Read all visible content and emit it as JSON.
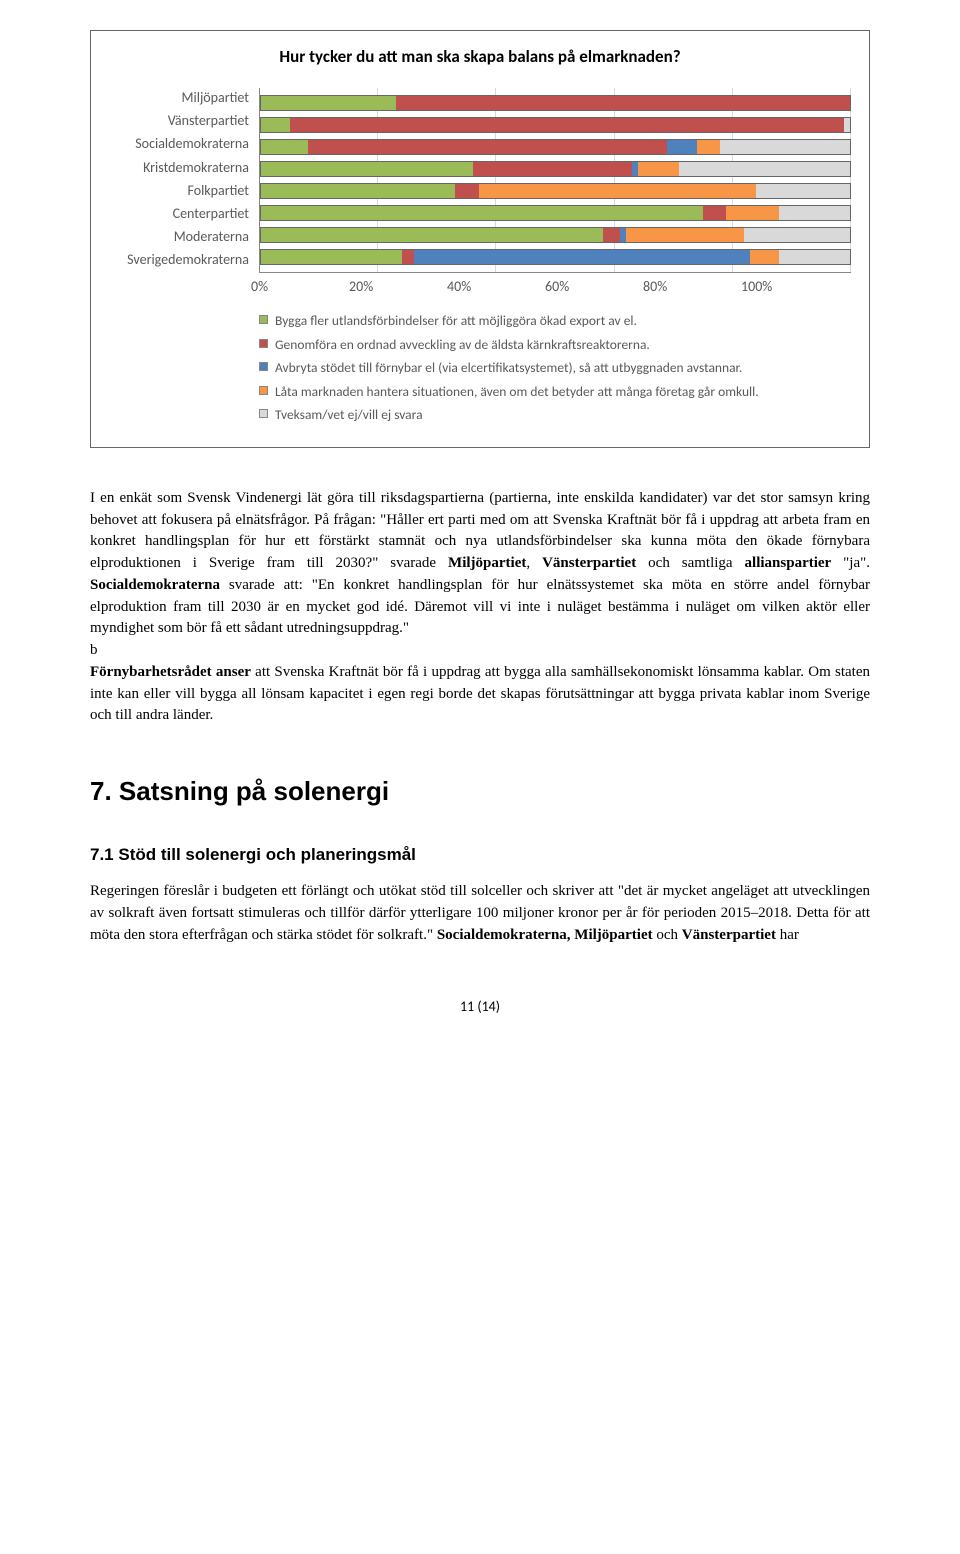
{
  "chart": {
    "title": "Hur tycker du att man ska skapa balans på elmarknaden?",
    "type": "stacked-bar-horizontal",
    "categories": [
      "Miljöpartiet",
      "Vänsterpartiet",
      "Socialdemokraterna",
      "Kristdemokraterna",
      "Folkpartiet",
      "Centerpartiet",
      "Moderaterna",
      "Sverigedemokraterna"
    ],
    "series": [
      {
        "label": "Bygga fler utlandsförbindelser för att möjliggöra ökad export av el.",
        "color": "#9bbb59"
      },
      {
        "label": "Genomföra en ordnad avveckling av de äldsta kärnkraftsreaktorerna.",
        "color": "#c0504d"
      },
      {
        "label": "Avbryta stödet till förnybar el (via elcertifikatsystemet), så att utbyggnaden avstannar.",
        "color": "#4f81bd"
      },
      {
        "label": "Låta marknaden hantera situationen, även om det betyder att många företag går omkull.",
        "color": "#f79646"
      },
      {
        "label": "Tveksam/vet ej/vill ej svara",
        "color": "#d9d9d9"
      }
    ],
    "values": [
      [
        23,
        77,
        0,
        0,
        0
      ],
      [
        5,
        94,
        0,
        0,
        1
      ],
      [
        8,
        61,
        5,
        4,
        22
      ],
      [
        36,
        27,
        1,
        7,
        29
      ],
      [
        33,
        4,
        0,
        47,
        16
      ],
      [
        75,
        4,
        0,
        9,
        12
      ],
      [
        58,
        3,
        1,
        20,
        18
      ],
      [
        24,
        2,
        57,
        5,
        12
      ]
    ],
    "x_ticks": [
      "0%",
      "20%",
      "40%",
      "60%",
      "80%",
      "100%"
    ],
    "xlim": [
      0,
      100
    ],
    "background_color": "#ffffff",
    "grid_color": "#d9d9d9",
    "label_fontsize": 14,
    "title_fontsize": 17
  },
  "body": {
    "p1a": "I en enkät som Svensk Vindenergi lät göra till riksdagspartierna (partierna, inte enskilda kandidater) var det stor samsyn kring behovet att fokusera på elnätsfrågor. På frågan: \"Håller ert parti med om att Svenska Kraftnät bör få i uppdrag att arbeta fram en konkret handlingsplan för hur ett förstärkt stamnät och nya utlandsförbindelser ska kunna möta den ökade förnybara elproduktionen i Sverige fram till 2030?\" svarade ",
    "p1_mp": "Miljöpartiet",
    "p1b": ", ",
    "p1_vp": "Vänsterpartiet",
    "p1c": " och samtliga ",
    "p1_all": "allianspartier",
    "p1d": " \"ja\". ",
    "p1_sd": "Socialdemokraterna",
    "p1e": " svarade att: \"En konkret handlingsplan för hur elnätssystemet ska möta en större andel förnybar elproduktion fram till 2030 är en mycket god idé. Däremot vill vi inte i nuläget bestämma i nuläget om vilken aktör eller myndighet som bör få ett sådant utredningsuppdrag.\"",
    "p1_b": "b",
    "p2_strong": "Förnybarhetsrådet anser",
    "p2": " att Svenska Kraftnät bör få i uppdrag att bygga alla samhällsekonomiskt lönsamma kablar. Om staten inte kan eller vill bygga all lönsam kapacitet i egen regi borde det skapas förutsättningar att bygga privata kablar inom Sverige och till andra länder."
  },
  "section7": {
    "heading": "7. Satsning på solenergi",
    "sub_heading": "7.1   Stöd till solenergi och planeringsmål",
    "p1a": "Regeringen föreslår i budgeten ett förlängt och utökat stöd till solceller och skriver att \"det är mycket angeläget att utvecklingen av solkraft även fortsatt stimuleras och tillför därför ytterligare 100 miljoner kronor per år för perioden 2015–2018. Detta för att möta den stora efterfrågan och stärka stödet för solkraft.\" ",
    "p1_sd": "Socialdemokraterna, Miljöpartiet",
    "p1b": " och ",
    "p1_vp": "Vänsterpartiet",
    "p1c": " har"
  },
  "page_num": "11 (14)"
}
